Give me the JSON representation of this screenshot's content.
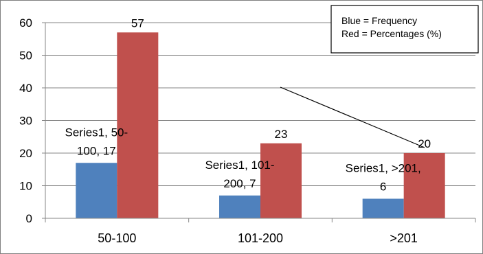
{
  "chart_data": {
    "type": "bar",
    "categories": [
      "50-100",
      "101-200",
      ">201"
    ],
    "series": [
      {
        "values": [
          17,
          7,
          6
        ],
        "color": "#4F81BD"
      },
      {
        "values": [
          57,
          23,
          20
        ],
        "color": "#C0504D"
      }
    ],
    "data_labels": {
      "series1": [
        [
          "Series1, 50-",
          "100, 17"
        ],
        [
          "Series1, 101-",
          "200, 7"
        ],
        [
          "Series1, >201,",
          "6"
        ]
      ],
      "series2": [
        "57",
        "23",
        "20"
      ]
    },
    "yticks": [
      "0",
      "10",
      "20",
      "30",
      "40",
      "50",
      "60"
    ],
    "ylim": [
      0,
      60
    ],
    "grid": true,
    "legend_note": [
      "Blue = Frequency",
      "Red = Percentages (%)"
    ],
    "legend_placement": "top-right"
  }
}
